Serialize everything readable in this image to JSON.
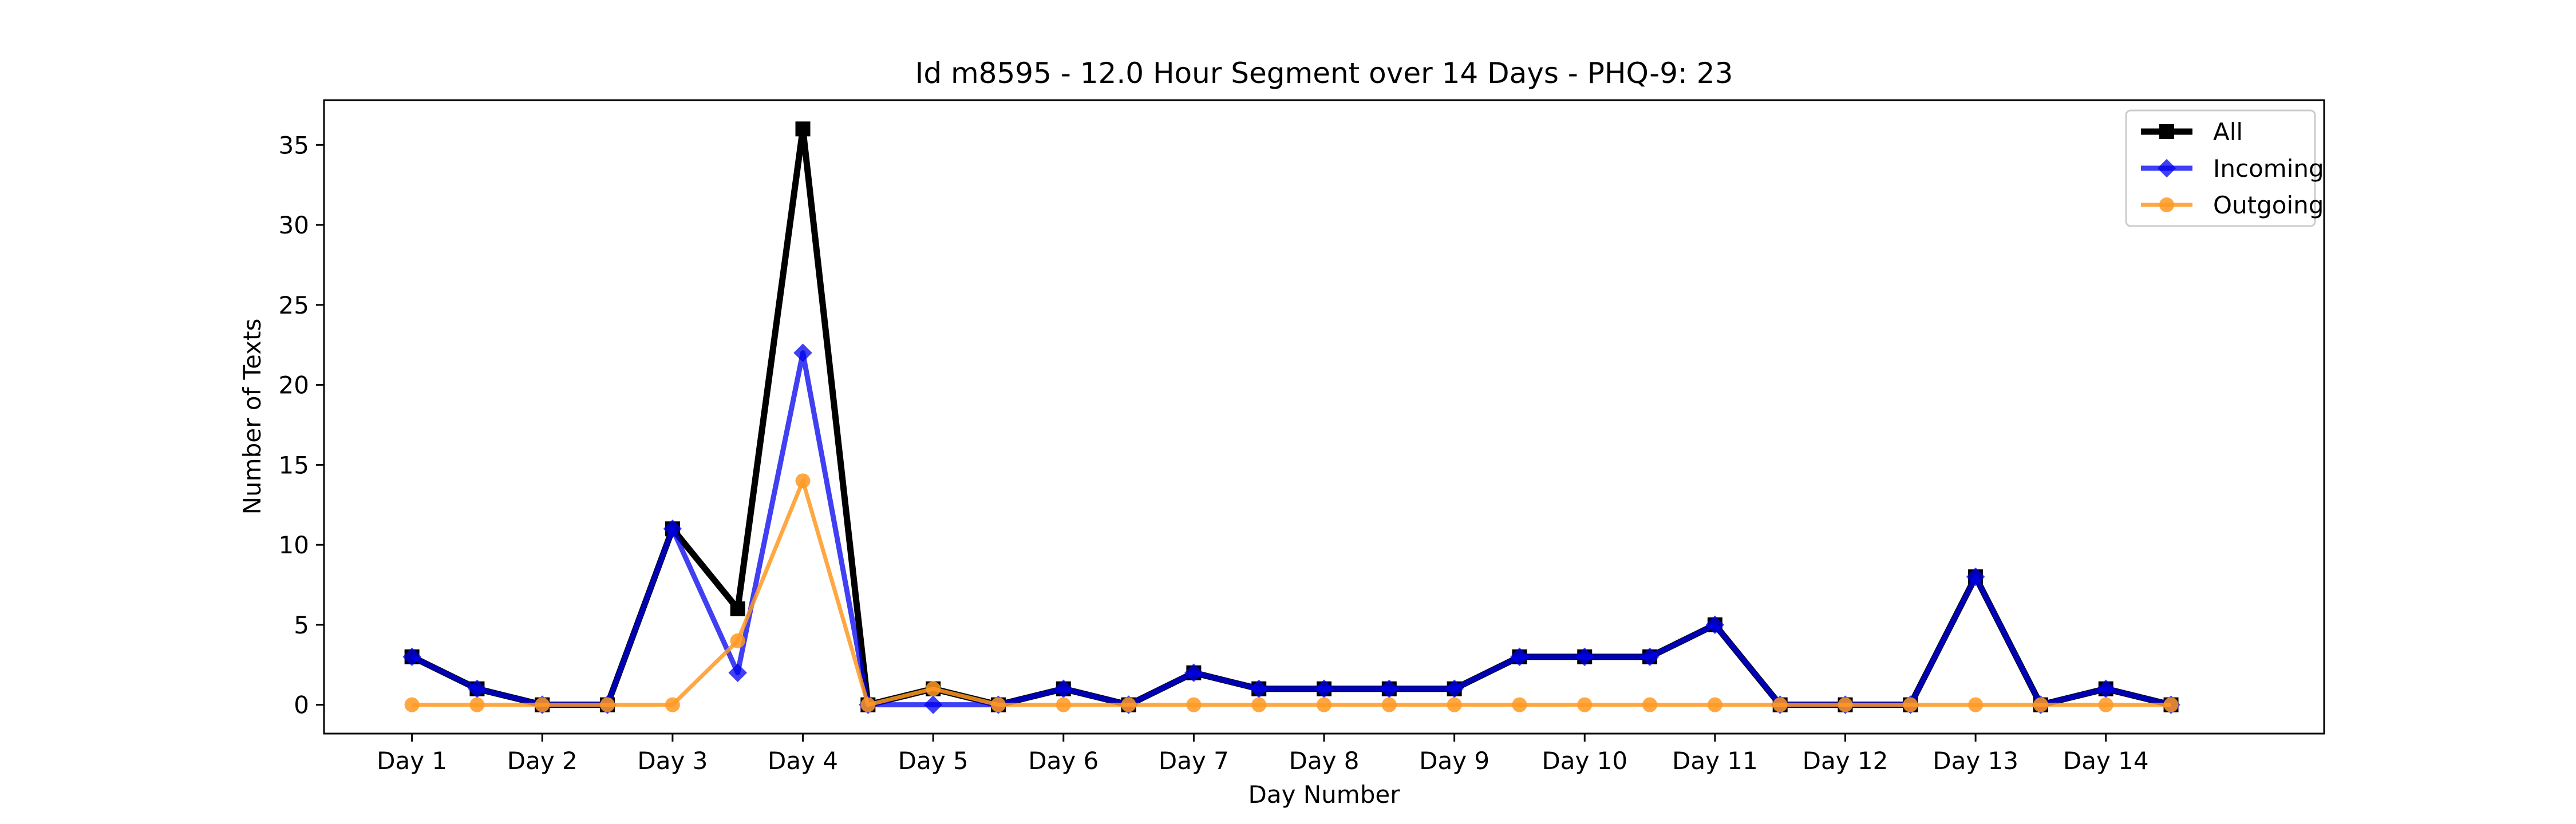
{
  "chart_data": {
    "type": "line",
    "title": "Id m8595 - 12.0 Hour Segment over 14 Days - PHQ-9: 23",
    "xlabel": "Day Number",
    "ylabel": "Number of Texts",
    "x": [
      1,
      2,
      3,
      4,
      5,
      6,
      7,
      8,
      9,
      10,
      11,
      12,
      13,
      14,
      15,
      16,
      17,
      18,
      19,
      20,
      21,
      22,
      23,
      24,
      25,
      26,
      27,
      28
    ],
    "xtick_positions": [
      1,
      3,
      5,
      7,
      9,
      11,
      13,
      15,
      17,
      19,
      21,
      23,
      25,
      27
    ],
    "xtick_labels": [
      "Day 1",
      "Day 2",
      "Day 3",
      "Day 4",
      "Day 5",
      "Day 6",
      "Day 7",
      "Day 8",
      "Day 9",
      "Day 10",
      "Day 11",
      "Day 12",
      "Day 13",
      "Day 14"
    ],
    "xlim": [
      -0.35,
      30.35
    ],
    "ylim": [
      -1.8,
      37.8
    ],
    "yticks": [
      0,
      5,
      10,
      15,
      20,
      25,
      30,
      35
    ],
    "grid": false,
    "legend_position": "top-right",
    "series": [
      {
        "name": "All",
        "color": "#000000",
        "marker": "square",
        "values": [
          3,
          1,
          0,
          0,
          11,
          6,
          36,
          0,
          1,
          0,
          1,
          0,
          2,
          1,
          1,
          1,
          1,
          3,
          3,
          3,
          5,
          0,
          0,
          0,
          8,
          0,
          1,
          0
        ]
      },
      {
        "name": "Incoming",
        "color": "#0000ee",
        "marker": "diamond",
        "values": [
          3,
          1,
          0,
          0,
          11,
          2,
          22,
          0,
          0,
          0,
          1,
          0,
          2,
          1,
          1,
          1,
          1,
          3,
          3,
          3,
          5,
          0,
          0,
          0,
          8,
          0,
          1,
          0
        ]
      },
      {
        "name": "Outgoing",
        "color": "#ff9922",
        "marker": "circle",
        "values": [
          0,
          0,
          0,
          0,
          0,
          4,
          14,
          0,
          1,
          0,
          0,
          0,
          0,
          0,
          0,
          0,
          0,
          0,
          0,
          0,
          0,
          0,
          0,
          0,
          0,
          0,
          0,
          0
        ]
      }
    ]
  }
}
